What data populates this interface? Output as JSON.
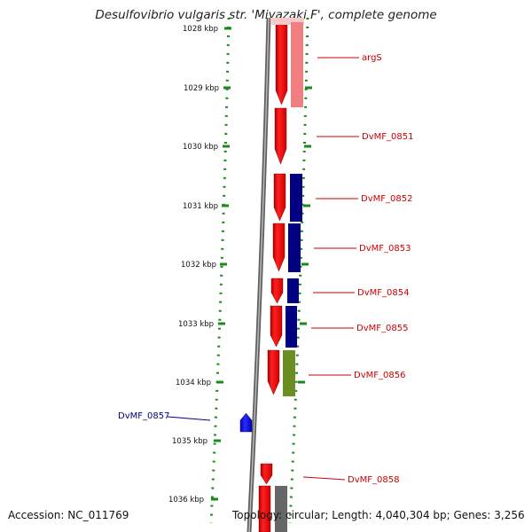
{
  "title": "Desulfovibrio vulgaris str. 'Miyazaki F', complete genome",
  "footer": {
    "accession": "Accession: NC_011769",
    "topology": "Topology: circular; Length: 4,040,304 bp; Genes: 3,256"
  },
  "ticks": [
    "1028 kbp",
    "1029 kbp",
    "1030 kbp",
    "1031 kbp",
    "1032 kbp",
    "1033 kbp",
    "1034 kbp",
    "1035 kbp",
    "1036 kbp"
  ],
  "genes": [
    {
      "name": "argS",
      "side": "right",
      "color": "#cc0000"
    },
    {
      "name": "DvMF_0851",
      "side": "right",
      "color": "#cc0000"
    },
    {
      "name": "DvMF_0852",
      "side": "right",
      "color": "#cc0000"
    },
    {
      "name": "DvMF_0853",
      "side": "right",
      "color": "#cc0000"
    },
    {
      "name": "DvMF_0854",
      "side": "right",
      "color": "#cc0000"
    },
    {
      "name": "DvMF_0855",
      "side": "right",
      "color": "#cc0000"
    },
    {
      "name": "DvMF_0856",
      "side": "right",
      "color": "#cc0000"
    },
    {
      "name": "DvMF_0857",
      "side": "left",
      "color": "#000080"
    },
    {
      "name": "DvMF_0858",
      "side": "right",
      "color": "#cc0000"
    }
  ],
  "colors": {
    "forward_strand": "#ff0000",
    "reverse_strand": "#0000ff",
    "cog_blue": "#000080",
    "cog_pink": "#f08080",
    "cog_olive": "#6b8e23",
    "cog_gray": "#666666",
    "backbone": "#808080",
    "ruler": "#1a8a1a"
  }
}
